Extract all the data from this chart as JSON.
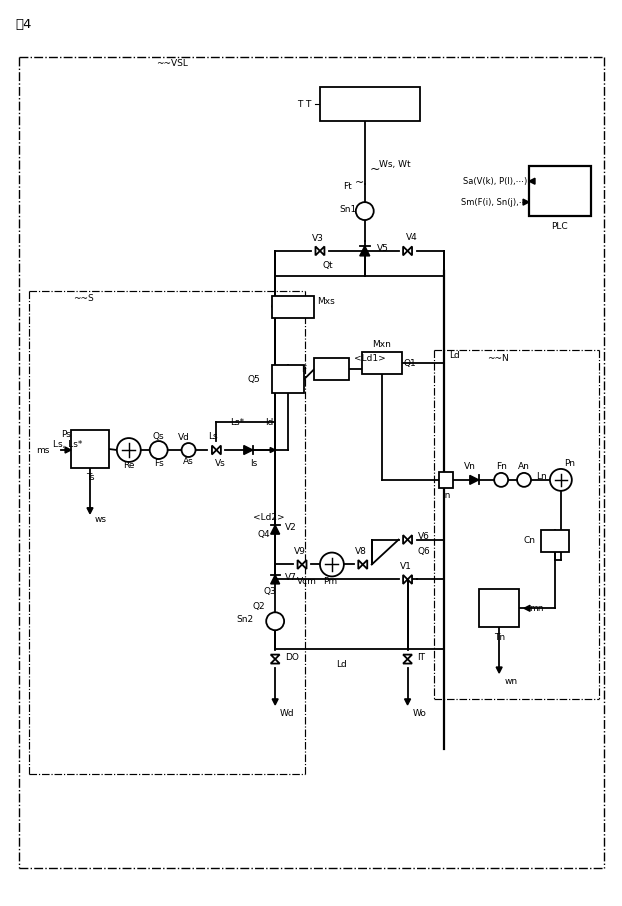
{
  "fig_label": "図4",
  "vsl_label": "~~VSL",
  "s_label": "~~S",
  "n_label": "~~N",
  "background": "#ffffff",
  "lw": 1.3,
  "fs": 6.5
}
